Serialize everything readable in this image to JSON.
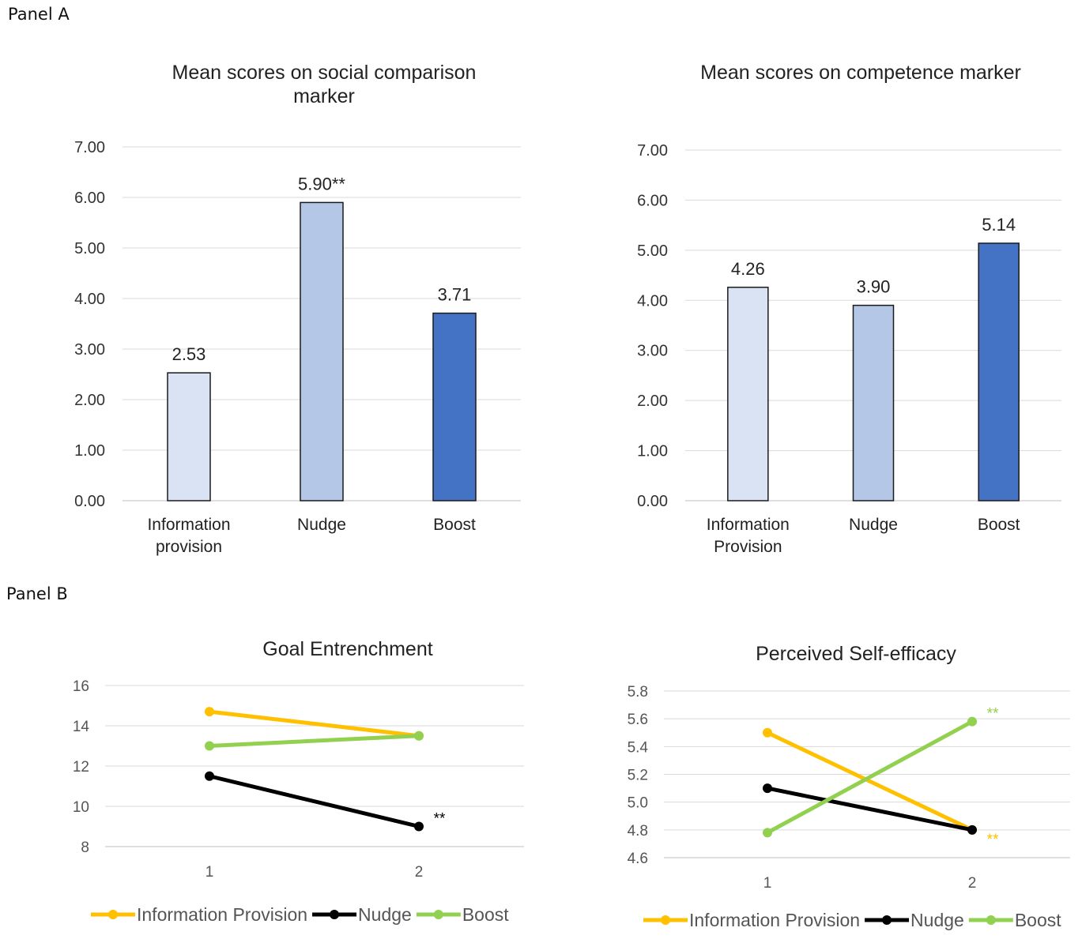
{
  "panels": {
    "a_label": "Panel A",
    "b_label": "Panel B"
  },
  "chart_data": [
    {
      "id": "social",
      "type": "bar",
      "title": "Mean scores on social comparison marker",
      "title_lines": [
        "Mean scores on social comparison",
        "marker"
      ],
      "categories": [
        "Information provision",
        "Nudge",
        "Boost"
      ],
      "category_lines": [
        [
          "Information",
          "provision"
        ],
        [
          "Nudge"
        ],
        [
          "Boost"
        ]
      ],
      "values": [
        2.53,
        5.9,
        3.71
      ],
      "data_labels": [
        "2.53",
        "5.90**",
        "3.71"
      ],
      "colors": [
        "#dae3f3",
        "#b4c7e7",
        "#4472c4"
      ],
      "ylim": [
        0,
        7
      ],
      "yticks": [
        "0.00",
        "1.00",
        "2.00",
        "3.00",
        "4.00",
        "5.00",
        "6.00",
        "7.00"
      ],
      "grid": true
    },
    {
      "id": "competence",
      "type": "bar",
      "title": "Mean scores on competence marker",
      "title_lines": [
        "Mean scores on competence marker"
      ],
      "categories": [
        "Information Provision",
        "Nudge",
        "Boost"
      ],
      "category_lines": [
        [
          "Information",
          "Provision"
        ],
        [
          "Nudge"
        ],
        [
          "Boost"
        ]
      ],
      "values": [
        4.26,
        3.9,
        5.14
      ],
      "data_labels": [
        "4.26",
        "3.90",
        "5.14"
      ],
      "colors": [
        "#dae3f3",
        "#b4c7e7",
        "#4472c4"
      ],
      "ylim": [
        0,
        7
      ],
      "yticks": [
        "0.00",
        "1.00",
        "2.00",
        "3.00",
        "4.00",
        "5.00",
        "6.00",
        "7.00"
      ],
      "grid": true
    },
    {
      "id": "goal",
      "type": "line",
      "title": "Goal Entrenchment",
      "x": [
        "1",
        "2"
      ],
      "ylim": [
        8,
        16
      ],
      "yticks": [
        "8",
        "10",
        "12",
        "14",
        "16"
      ],
      "grid": true,
      "legend": "bottom",
      "series": [
        {
          "name": "Information Provision",
          "values": [
            14.7,
            13.5
          ],
          "color": "#ffc000",
          "annotations": [
            "",
            ""
          ]
        },
        {
          "name": "Nudge",
          "values": [
            11.5,
            9.0
          ],
          "color": "#000000",
          "annotations": [
            "",
            "**"
          ]
        },
        {
          "name": "Boost",
          "values": [
            13.0,
            13.5
          ],
          "color": "#92d050",
          "annotations": [
            "",
            ""
          ]
        }
      ]
    },
    {
      "id": "selfefficacy",
      "type": "line",
      "title": "Perceived Self-efficacy",
      "x": [
        "1",
        "2"
      ],
      "ylim": [
        4.6,
        5.8
      ],
      "yticks": [
        "4.6",
        "4.8",
        "5.0",
        "5.2",
        "5.4",
        "5.6",
        "5.8"
      ],
      "grid": true,
      "legend": "bottom",
      "series": [
        {
          "name": "Information Provision",
          "values": [
            5.5,
            4.8
          ],
          "color": "#ffc000",
          "annotations": [
            "",
            "**"
          ]
        },
        {
          "name": "Nudge",
          "values": [
            5.1,
            4.8
          ],
          "color": "#000000",
          "annotations": [
            "",
            ""
          ]
        },
        {
          "name": "Boost",
          "values": [
            4.78,
            5.58
          ],
          "color": "#92d050",
          "annotations": [
            "",
            "**"
          ]
        }
      ]
    }
  ]
}
